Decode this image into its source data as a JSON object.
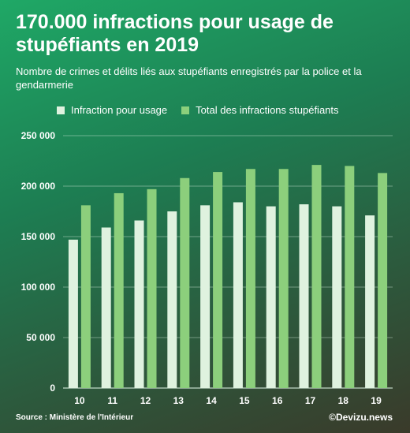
{
  "header": {
    "title": "170.000 infractions pour usage de stupéfiants en 2019",
    "subtitle": "Nombre de crimes et délits liés aux stupéfiants enregistrés par la police et la gendarmerie"
  },
  "legend": {
    "series_1": "Infraction pour usage",
    "series_2": "Total des infractions stupéfiants"
  },
  "footer": {
    "source": "Source : Ministère de l'Intérieur",
    "brand": "©Devizu.news"
  },
  "colors": {
    "series_1": "#dff2df",
    "series_2": "#8ccf7c",
    "grid": "#cfe7d6",
    "text": "#ffffff"
  },
  "chart_data": {
    "type": "bar",
    "categories": [
      "10",
      "11",
      "12",
      "13",
      "14",
      "15",
      "16",
      "17",
      "18",
      "19"
    ],
    "series": [
      {
        "name": "Infraction pour usage",
        "values": [
          147000,
          159000,
          166000,
          175000,
          181000,
          184000,
          180000,
          182000,
          180000,
          171000
        ]
      },
      {
        "name": "Total des infractions stupéfiants",
        "values": [
          181000,
          193000,
          197000,
          208000,
          214000,
          217000,
          217000,
          221000,
          220000,
          213000
        ]
      }
    ],
    "yticks": [
      "0",
      "50 000",
      "100 000",
      "150 000",
      "200 000",
      "250 000"
    ],
    "ylim": [
      0,
      250000
    ],
    "grid": true,
    "legend_position": "top"
  }
}
